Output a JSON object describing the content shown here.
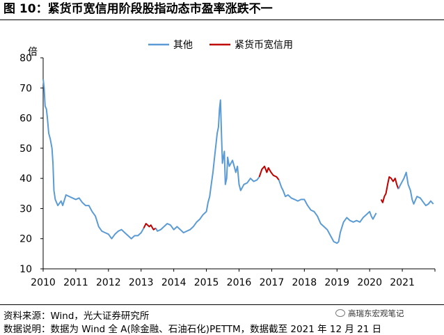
{
  "header": {
    "title": "图 10：紧货币宽信用阶段股指动态市盈率涨跌不一"
  },
  "footer": {
    "source": "资料来源：Wind，光大证券研究所",
    "note": "数据说明：数据为 Wind 全 A(除金融、石油石化)PETTM，数据截至 2021 年 12 月 21 日",
    "watermark": "高瑞东宏观笔记"
  },
  "colors": {
    "other": "#5B9BD5",
    "tight": "#C00000"
  },
  "chart_data": {
    "type": "line",
    "title": "",
    "ylabel": "倍",
    "xlabel": "",
    "ylim": [
      10,
      80
    ],
    "xlim": [
      2010,
      2022
    ],
    "y_ticks": [
      10,
      20,
      30,
      40,
      50,
      60,
      70,
      80
    ],
    "x_ticks": [
      "2010",
      "2011",
      "2012",
      "2013",
      "2014",
      "2015",
      "2016",
      "2017",
      "2018",
      "2019",
      "2020",
      "2021"
    ],
    "legend": {
      "placement": "top-center",
      "entries": [
        "其他",
        "紧货币宽信用"
      ]
    },
    "grid": false,
    "series": [
      {
        "name": "其他",
        "color": "#5B9BD5",
        "points": [
          [
            2010.0,
            73
          ],
          [
            2010.03,
            70
          ],
          [
            2010.06,
            64
          ],
          [
            2010.1,
            63
          ],
          [
            2010.13,
            60
          ],
          [
            2010.17,
            55
          ],
          [
            2010.22,
            53
          ],
          [
            2010.27,
            50
          ],
          [
            2010.3,
            45
          ],
          [
            2010.33,
            36
          ],
          [
            2010.37,
            33
          ],
          [
            2010.45,
            31
          ],
          [
            2010.55,
            32.5
          ],
          [
            2010.6,
            31
          ],
          [
            2010.7,
            34.5
          ],
          [
            2010.8,
            34
          ],
          [
            2010.9,
            33.5
          ],
          [
            2011.0,
            33
          ],
          [
            2011.1,
            33.5
          ],
          [
            2011.2,
            32
          ],
          [
            2011.3,
            31
          ],
          [
            2011.4,
            31
          ],
          [
            2011.5,
            29
          ],
          [
            2011.6,
            27.5
          ],
          [
            2011.7,
            24
          ],
          [
            2011.8,
            22.5
          ],
          [
            2011.9,
            22
          ],
          [
            2012.0,
            21.5
          ],
          [
            2012.1,
            20
          ],
          [
            2012.2,
            21.5
          ],
          [
            2012.3,
            22.5
          ],
          [
            2012.4,
            23
          ],
          [
            2012.5,
            22
          ],
          [
            2012.6,
            21
          ],
          [
            2012.7,
            20
          ],
          [
            2012.8,
            21
          ],
          [
            2012.9,
            21
          ],
          [
            2013.0,
            22
          ],
          [
            2013.08,
            23.5
          ]
        ]
      },
      {
        "name": "紧货币宽信用",
        "color": "#C00000",
        "points": [
          [
            2013.08,
            23.5
          ],
          [
            2013.15,
            25
          ],
          [
            2013.25,
            24
          ],
          [
            2013.3,
            24.5
          ],
          [
            2013.38,
            23
          ],
          [
            2013.45,
            23.5
          ]
        ]
      },
      {
        "name": "其他",
        "color": "#5B9BD5",
        "points": [
          [
            2013.45,
            23.5
          ],
          [
            2013.5,
            22.5
          ],
          [
            2013.6,
            23
          ],
          [
            2013.7,
            24
          ],
          [
            2013.8,
            25
          ],
          [
            2013.9,
            24.5
          ],
          [
            2014.0,
            23
          ],
          [
            2014.1,
            24
          ],
          [
            2014.2,
            23
          ],
          [
            2014.3,
            22
          ],
          [
            2014.4,
            22.5
          ],
          [
            2014.5,
            23
          ],
          [
            2014.6,
            24
          ],
          [
            2014.7,
            25.5
          ],
          [
            2014.8,
            26.5
          ],
          [
            2014.9,
            28
          ],
          [
            2015.0,
            29
          ],
          [
            2015.05,
            32
          ],
          [
            2015.1,
            34
          ],
          [
            2015.15,
            38
          ],
          [
            2015.2,
            42
          ],
          [
            2015.25,
            47
          ],
          [
            2015.3,
            52
          ],
          [
            2015.33,
            55
          ],
          [
            2015.37,
            57
          ],
          [
            2015.4,
            63
          ],
          [
            2015.43,
            66
          ],
          [
            2015.46,
            55
          ],
          [
            2015.49,
            45
          ],
          [
            2015.52,
            47
          ],
          [
            2015.55,
            49
          ],
          [
            2015.58,
            38
          ],
          [
            2015.62,
            40
          ],
          [
            2015.65,
            47
          ],
          [
            2015.7,
            44
          ],
          [
            2015.75,
            45
          ],
          [
            2015.8,
            46
          ],
          [
            2015.85,
            44
          ],
          [
            2015.9,
            42
          ],
          [
            2015.95,
            44
          ],
          [
            2016.0,
            38
          ],
          [
            2016.05,
            36
          ],
          [
            2016.15,
            38
          ],
          [
            2016.25,
            38.5
          ],
          [
            2016.35,
            40
          ],
          [
            2016.45,
            39
          ],
          [
            2016.55,
            39.5
          ],
          [
            2016.62,
            40.5
          ]
        ]
      },
      {
        "name": "紧货币宽信用",
        "color": "#C00000",
        "points": [
          [
            2016.62,
            40.5
          ],
          [
            2016.7,
            43
          ],
          [
            2016.78,
            44
          ],
          [
            2016.85,
            42
          ],
          [
            2016.9,
            43.5
          ],
          [
            2016.98,
            42
          ],
          [
            2017.05,
            41
          ],
          [
            2017.15,
            40.5
          ],
          [
            2017.22,
            39.5
          ]
        ]
      },
      {
        "name": "其他",
        "color": "#5B9BD5",
        "points": [
          [
            2017.22,
            39.5
          ],
          [
            2017.3,
            37
          ],
          [
            2017.35,
            36
          ],
          [
            2017.42,
            34
          ],
          [
            2017.5,
            34.5
          ],
          [
            2017.6,
            33.5
          ],
          [
            2017.7,
            33
          ],
          [
            2017.8,
            32.5
          ],
          [
            2017.9,
            33
          ],
          [
            2018.0,
            33
          ],
          [
            2018.1,
            31
          ],
          [
            2018.2,
            29.5
          ],
          [
            2018.3,
            29
          ],
          [
            2018.4,
            27.5
          ],
          [
            2018.5,
            25
          ],
          [
            2018.6,
            24
          ],
          [
            2018.7,
            23
          ],
          [
            2018.8,
            21
          ],
          [
            2018.9,
            19
          ],
          [
            2019.0,
            18.5
          ],
          [
            2019.05,
            19
          ],
          [
            2019.1,
            22
          ],
          [
            2019.2,
            25.5
          ],
          [
            2019.3,
            27
          ],
          [
            2019.4,
            26
          ],
          [
            2019.5,
            25.5
          ],
          [
            2019.6,
            26
          ],
          [
            2019.7,
            25.5
          ],
          [
            2019.8,
            27
          ],
          [
            2019.9,
            28
          ],
          [
            2020.0,
            29
          ],
          [
            2020.05,
            27.5
          ],
          [
            2020.1,
            26.5
          ],
          [
            2020.2,
            28.5
          ]
        ]
      },
      {
        "name": "紧货币宽信用",
        "color": "#C00000",
        "points": [
          [
            2020.35,
            33
          ],
          [
            2020.4,
            32
          ],
          [
            2020.45,
            34
          ],
          [
            2020.5,
            35
          ],
          [
            2020.55,
            38
          ],
          [
            2020.6,
            40.5
          ],
          [
            2020.66,
            40
          ],
          [
            2020.72,
            39
          ],
          [
            2020.78,
            40
          ],
          [
            2020.83,
            38
          ],
          [
            2020.88,
            36.5
          ]
        ]
      },
      {
        "name": "其他",
        "color": "#5B9BD5",
        "points": [
          [
            2020.88,
            36.5
          ],
          [
            2020.95,
            38
          ],
          [
            2021.05,
            40
          ],
          [
            2021.12,
            42
          ],
          [
            2021.18,
            38
          ],
          [
            2021.25,
            36
          ],
          [
            2021.3,
            33
          ],
          [
            2021.35,
            31.5
          ],
          [
            2021.45,
            34
          ],
          [
            2021.55,
            33.5
          ],
          [
            2021.65,
            32
          ],
          [
            2021.72,
            31
          ],
          [
            2021.8,
            31.5
          ],
          [
            2021.87,
            32.5
          ],
          [
            2021.95,
            31.5
          ]
        ]
      }
    ]
  }
}
